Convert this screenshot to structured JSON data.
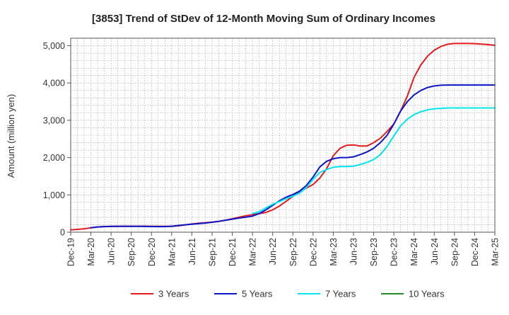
{
  "chart_data": {
    "type": "line",
    "title": "[3853]  Trend of StDev of 12-Month Moving Sum of Ordinary Incomes",
    "xlabel": "",
    "ylabel": "Amount (million yen)",
    "ylim": [
      0,
      5200
    ],
    "yticks": [
      0,
      1000,
      2000,
      3000,
      4000,
      5000
    ],
    "ytick_labels": [
      "0",
      "1,000",
      "2,000",
      "3,000",
      "4,000",
      "5,000"
    ],
    "xtick_labels": [
      "Dec-19",
      "Mar-20",
      "Jun-20",
      "Sep-20",
      "Dec-20",
      "Mar-21",
      "Jun-21",
      "Sep-21",
      "Dec-21",
      "Mar-22",
      "Jun-22",
      "Sep-22",
      "Dec-22",
      "Mar-23",
      "Jun-23",
      "Sep-23",
      "Dec-23",
      "Mar-24",
      "Jun-24",
      "Sep-24",
      "Dec-24",
      "Mar-25"
    ],
    "x_start": "Dec-19",
    "x_months": 63,
    "grid": true,
    "legend_position": "bottom",
    "series": [
      {
        "name": "3 Years",
        "color": "#e41a1c",
        "start_month": 0,
        "values": [
          60,
          75,
          90,
          120,
          140,
          150,
          155,
          158,
          160,
          160,
          160,
          160,
          158,
          156,
          155,
          155,
          170,
          195,
          220,
          240,
          255,
          270,
          290,
          320,
          360,
          400,
          440,
          470,
          500,
          530,
          600,
          700,
          830,
          960,
          1080,
          1180,
          1280,
          1450,
          1700,
          2050,
          2250,
          2330,
          2340,
          2310,
          2310,
          2400,
          2520,
          2700,
          2900,
          3250,
          3650,
          4150,
          4480,
          4720,
          4880,
          4980,
          5040,
          5060,
          5060,
          5060,
          5055,
          5045,
          5030,
          5010
        ]
      },
      {
        "name": "5 Years",
        "color": "#0a14c8",
        "start_month": 3,
        "values": [
          120,
          140,
          150,
          153,
          155,
          155,
          155,
          155,
          153,
          152,
          150,
          150,
          160,
          180,
          200,
          215,
          230,
          245,
          265,
          290,
          320,
          350,
          380,
          400,
          430,
          500,
          600,
          720,
          840,
          940,
          1010,
          1100,
          1250,
          1480,
          1750,
          1900,
          1970,
          2000,
          2000,
          2020,
          2080,
          2150,
          2250,
          2400,
          2600,
          2900,
          3250,
          3500,
          3680,
          3800,
          3880,
          3920,
          3940,
          3945,
          3945,
          3945,
          3945,
          3945,
          3945,
          3945,
          3945
        ]
      },
      {
        "name": "7 Years",
        "color": "#00e5ee",
        "start_month": 27,
        "values": [
          500,
          550,
          650,
          750,
          820,
          900,
          960,
          1050,
          1200,
          1420,
          1600,
          1680,
          1740,
          1760,
          1760,
          1770,
          1810,
          1870,
          1950,
          2080,
          2300,
          2580,
          2850,
          3030,
          3150,
          3230,
          3280,
          3310,
          3320,
          3330,
          3330,
          3330,
          3330,
          3330,
          3330,
          3330,
          3330
        ]
      },
      {
        "name": "10 Years",
        "color": "#228b22",
        "start_month": 63,
        "values": []
      }
    ]
  }
}
